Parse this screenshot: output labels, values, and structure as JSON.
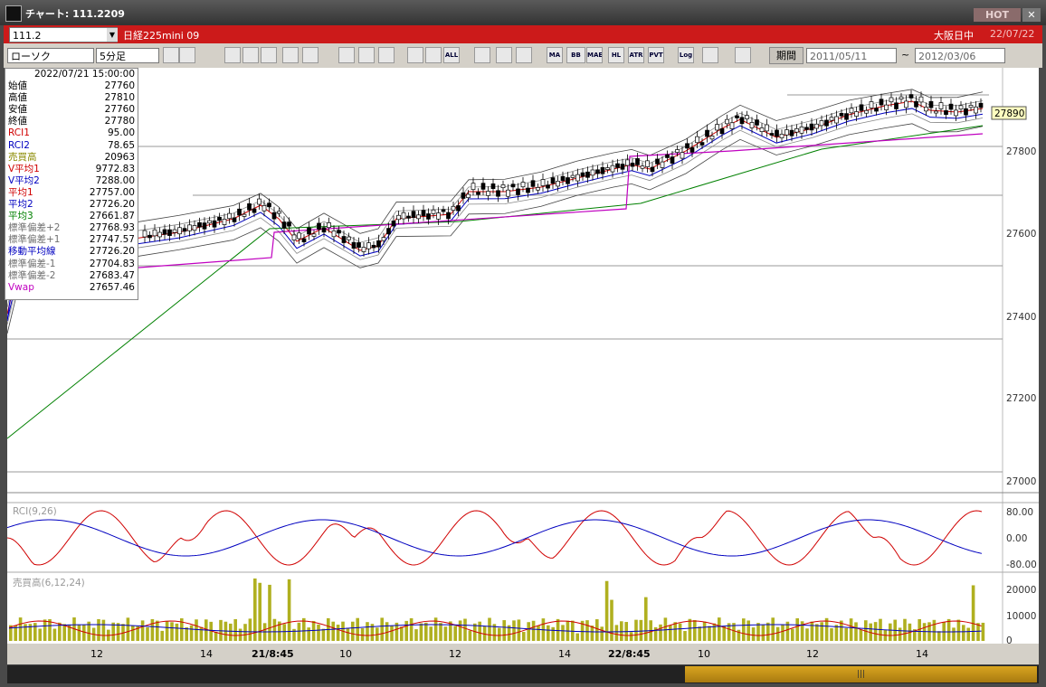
{
  "window": {
    "title": "チャート: 111.2209",
    "hot": "HOT"
  },
  "symbol_bar": {
    "code": "111.2",
    "name": "日経225mini 09",
    "session": "大阪日中",
    "date": "22/07/22"
  },
  "toolbar": {
    "chart_type": "ローソク",
    "interval": "5分足",
    "icons": [
      "ALL",
      "MA",
      "BB",
      "MAE",
      "HL",
      "ATR",
      "PVT",
      "Log"
    ],
    "period_button": "期間",
    "from": "2011/05/11",
    "separator": "~",
    "to": "2012/03/06"
  },
  "price_axis": {
    "ticks": [
      "27800",
      "27600",
      "27400",
      "27200",
      "27000"
    ],
    "last_price": "27890"
  },
  "rci_panel": {
    "label": "RCI(9,26)",
    "ticks": [
      "80.00",
      "0.00",
      "-80.00"
    ]
  },
  "volume_panel": {
    "label": "売買高(6,12,24)",
    "ticks": [
      "20000",
      "10000",
      "0"
    ]
  },
  "time_axis": [
    "12",
    "14",
    "21/8:45",
    "10",
    "12",
    "14",
    "22/8:45",
    "10",
    "12",
    "14"
  ],
  "info": {
    "datetime": "2022/07/21 15:00:00",
    "rows": [
      {
        "label": "始値",
        "value": "27760",
        "color": "#000000"
      },
      {
        "label": "高値",
        "value": "27810",
        "color": "#000000"
      },
      {
        "label": "安値",
        "value": "27760",
        "color": "#000000"
      },
      {
        "label": "終値",
        "value": "27780",
        "color": "#000000"
      },
      {
        "label": "RCI1",
        "value": "95.00",
        "color": "#d00000"
      },
      {
        "label": "RCI2",
        "value": "78.65",
        "color": "#0000c0"
      },
      {
        "label": "売買高",
        "value": "20963",
        "color": "#8a8a00"
      },
      {
        "label": "V平均1",
        "value": "9772.83",
        "color": "#d00000"
      },
      {
        "label": "V平均2",
        "value": "7288.00",
        "color": "#0000c0"
      },
      {
        "label": "平均1",
        "value": "27757.00",
        "color": "#d00000"
      },
      {
        "label": "平均2",
        "value": "27726.20",
        "color": "#0000c0"
      },
      {
        "label": "平均3",
        "value": "27661.87",
        "color": "#008000"
      },
      {
        "label": "標準偏差+2",
        "value": "27768.93",
        "color": "#707070"
      },
      {
        "label": "標準偏差+1",
        "value": "27747.57",
        "color": "#707070"
      },
      {
        "label": "移動平均線",
        "value": "27726.20",
        "color": "#0000c0"
      },
      {
        "label": "標準偏差-1",
        "value": "27704.83",
        "color": "#707070"
      },
      {
        "label": "標準偏差-2",
        "value": "27683.47",
        "color": "#707070"
      },
      {
        "label": "Vwap",
        "value": "27657.46",
        "color": "#c000c0"
      }
    ]
  }
}
